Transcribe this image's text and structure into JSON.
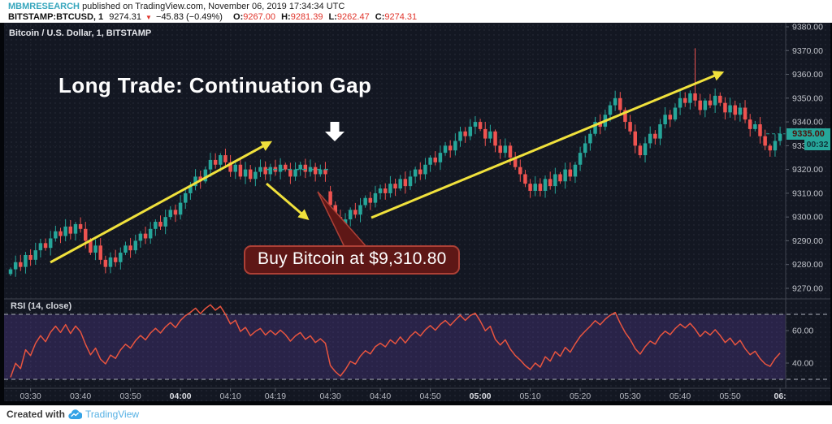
{
  "header": {
    "author": "MBMRESEARCH",
    "published_text": "published on TradingView.com, November 06, 2019 17:34:34 UTC",
    "symbol": "BITSTAMP:BTCUSD, 1",
    "last_price": "9274.31",
    "direction_symbol": "▼",
    "change_text": "−45.83 (−0.49%)",
    "ohlc": {
      "o_label": "O:",
      "o": "9267.00",
      "h_label": "H:",
      "h": "9281.39",
      "l_label": "L:",
      "l": "9262.47",
      "c_label": "C:",
      "c": "9274.31"
    }
  },
  "chart": {
    "title": "Bitcoin / U.S. Dollar, 1, BITSTAMP",
    "price_badge": "9335.00",
    "countdown": "00:32",
    "rsi_label": "RSI (14, close)"
  },
  "footer": {
    "created_with": "Created with",
    "brand": "TradingView"
  },
  "colors": {
    "up": "#26a69a",
    "down": "#ef5350",
    "background": "#131722",
    "annotation_yellow": "#f0e13c",
    "rsi_line": "#e8543f",
    "rsi_band_fill": "rgba(112,76,196,0.24)",
    "band_dash": "#9094a0",
    "callout_fill": "#5e1716",
    "callout_border": "#ad4036",
    "axis_text": "#c2c5cc",
    "separator": "#3f434e",
    "badge_teal": "#26a69a",
    "author_teal": "#36a6bd",
    "ohlc_red": "#e0342b",
    "brand_blue": "#54b0e4"
  },
  "chart_data": {
    "type": "candlestick",
    "title": "Bitcoin / U.S. Dollar, 1, BITSTAMP",
    "symbol": "BITSTAMP:BTCUSD",
    "interval_minutes": 1,
    "start_time": "03:26",
    "end_time": "06:00",
    "first_open": 9276,
    "closes": [
      9278,
      9281,
      9279,
      9284,
      9282,
      9286,
      9289,
      9287,
      9291,
      9294,
      9292,
      9296,
      9293,
      9297,
      9295,
      9290,
      9285,
      9288,
      9282,
      9279,
      9283,
      9281,
      9285,
      9288,
      9286,
      9290,
      9293,
      9291,
      9295,
      9298,
      9296,
      9300,
      9303,
      9301,
      9306,
      9310,
      9313,
      9317,
      9315,
      9320,
      9324,
      9322,
      9326,
      9323,
      9319,
      9322,
      9317,
      9320,
      9316,
      9319,
      9321,
      9318,
      9321,
      9319,
      9322,
      9320,
      9317,
      9320,
      9322,
      9319,
      9321,
      9318,
      9320,
      9318,
      9305,
      9300,
      9296,
      9299,
      9303,
      9301,
      9305,
      9308,
      9306,
      9310,
      9312,
      9310,
      9314,
      9312,
      9316,
      9313,
      9317,
      9320,
      9318,
      9322,
      9325,
      9323,
      9327,
      9330,
      9328,
      9332,
      9336,
      9334,
      9338,
      9340,
      9337,
      9333,
      9336,
      9330,
      9327,
      9330,
      9325,
      9321,
      9318,
      9314,
      9311,
      9314,
      9311,
      9316,
      9313,
      9318,
      9315,
      9320,
      9317,
      9322,
      9327,
      9331,
      9335,
      9340,
      9338,
      9343,
      9347,
      9350,
      9345,
      9340,
      9336,
      9330,
      9326,
      9331,
      9335,
      9333,
      9339,
      9343,
      9341,
      9346,
      9350,
      9348,
      9352,
      9349,
      9345,
      9349,
      9347,
      9351,
      9348,
      9344,
      9347,
      9343,
      9346,
      9341,
      9337,
      9339,
      9334,
      9330,
      9328,
      9332,
      9335
    ],
    "gap": {
      "index": 64,
      "open": 9310.8
    },
    "spike": {
      "index": 137,
      "high": 9371
    },
    "price_axis": {
      "min": 9270,
      "max": 9380,
      "step": 10
    },
    "time_labels": [
      {
        "text": "03:30",
        "index": 4
      },
      {
        "text": "03:40",
        "index": 14
      },
      {
        "text": "03:50",
        "index": 24
      },
      {
        "text": "04:00",
        "index": 34,
        "bold": true
      },
      {
        "text": "04:10",
        "index": 44
      },
      {
        "text": "04:19",
        "index": 53
      },
      {
        "text": "04:30",
        "index": 64
      },
      {
        "text": "04:40",
        "index": 74
      },
      {
        "text": "04:50",
        "index": 84
      },
      {
        "text": "05:00",
        "index": 94,
        "bold": true
      },
      {
        "text": "05:10",
        "index": 104
      },
      {
        "text": "05:20",
        "index": 114
      },
      {
        "text": "05:30",
        "index": 124
      },
      {
        "text": "05:40",
        "index": 134
      },
      {
        "text": "05:50",
        "index": 144
      },
      {
        "text": "06:",
        "index": 154,
        "bold": true
      }
    ],
    "rsi": {
      "period": 14,
      "upper": 70,
      "lower": 30,
      "ticks": [
        60,
        40
      ],
      "seed_gain": 0.5,
      "seed_loss": 1.1
    },
    "annotations": {
      "headline": "Long Trade: Continuation Gap",
      "callout_text": "Buy Bitcoin at $9,310.80",
      "current_price": 9335.0,
      "gap_level": 9320
    }
  }
}
